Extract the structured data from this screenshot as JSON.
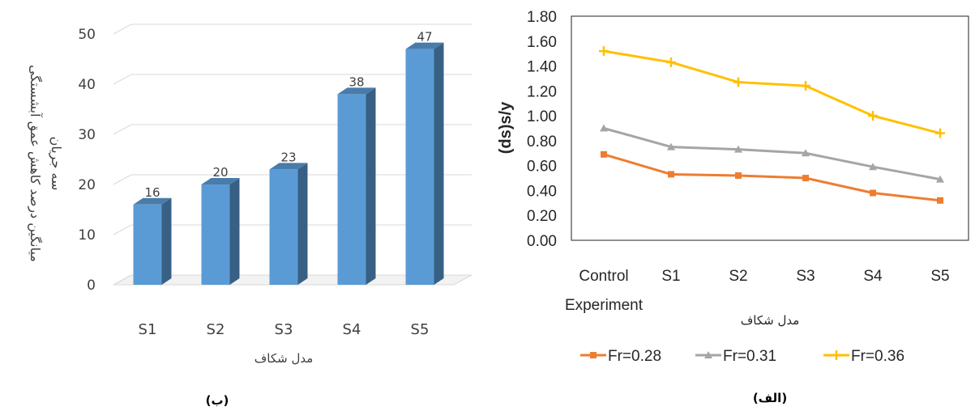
{
  "chart_data": [
    {
      "type": "bar",
      "panel_label": "(ب)",
      "categories": [
        "S1",
        "S2",
        "S3",
        "S4",
        "S5"
      ],
      "values": [
        16,
        20,
        23,
        38,
        47
      ],
      "data_labels": [
        "16",
        "20",
        "23",
        "38",
        "47"
      ],
      "xlabel": "مدل شکاف",
      "ylabel_lines": [
        "میانگین درصد کاهش عمق آبشستگی",
        "سه جریان"
      ],
      "ylim": [
        0,
        50
      ],
      "yticks": [
        "0",
        "10",
        "20",
        "30",
        "40",
        "50"
      ],
      "ytick_values": [
        0,
        10,
        20,
        30,
        40,
        50
      ],
      "grid": true,
      "bar_color": "#5b9bd5",
      "style": "3d-column"
    },
    {
      "type": "line",
      "panel_label": "(الف)",
      "categories": [
        [
          "Control",
          "Experiment"
        ],
        [
          "S1"
        ],
        [
          "S2"
        ],
        [
          "S3"
        ],
        [
          "S4"
        ],
        [
          "S5"
        ]
      ],
      "series": [
        {
          "name": "Fr=0.28",
          "color": "#ed7d31",
          "marker": "square",
          "values": [
            0.69,
            0.53,
            0.52,
            0.5,
            0.38,
            0.32
          ]
        },
        {
          "name": "Fr=0.31",
          "color": "#a5a5a5",
          "marker": "triangle",
          "values": [
            0.9,
            0.75,
            0.73,
            0.7,
            0.59,
            0.49
          ]
        },
        {
          "name": "Fr=0.36",
          "color": "#ffc000",
          "marker": "star",
          "values": [
            1.52,
            1.43,
            1.27,
            1.24,
            1.0,
            0.86
          ]
        }
      ],
      "xlabel": "مدل شکاف",
      "ylabel": "(ds)s/y",
      "ylim": [
        0,
        1.8
      ],
      "yticks": [
        "0.00",
        "0.20",
        "0.40",
        "0.60",
        "0.80",
        "1.00",
        "1.20",
        "1.40",
        "1.60",
        "1.80"
      ],
      "ytick_values": [
        0,
        0.2,
        0.4,
        0.6,
        0.8,
        1.0,
        1.2,
        1.4,
        1.6,
        1.8
      ],
      "grid": false,
      "legend_position": "bottom"
    }
  ]
}
